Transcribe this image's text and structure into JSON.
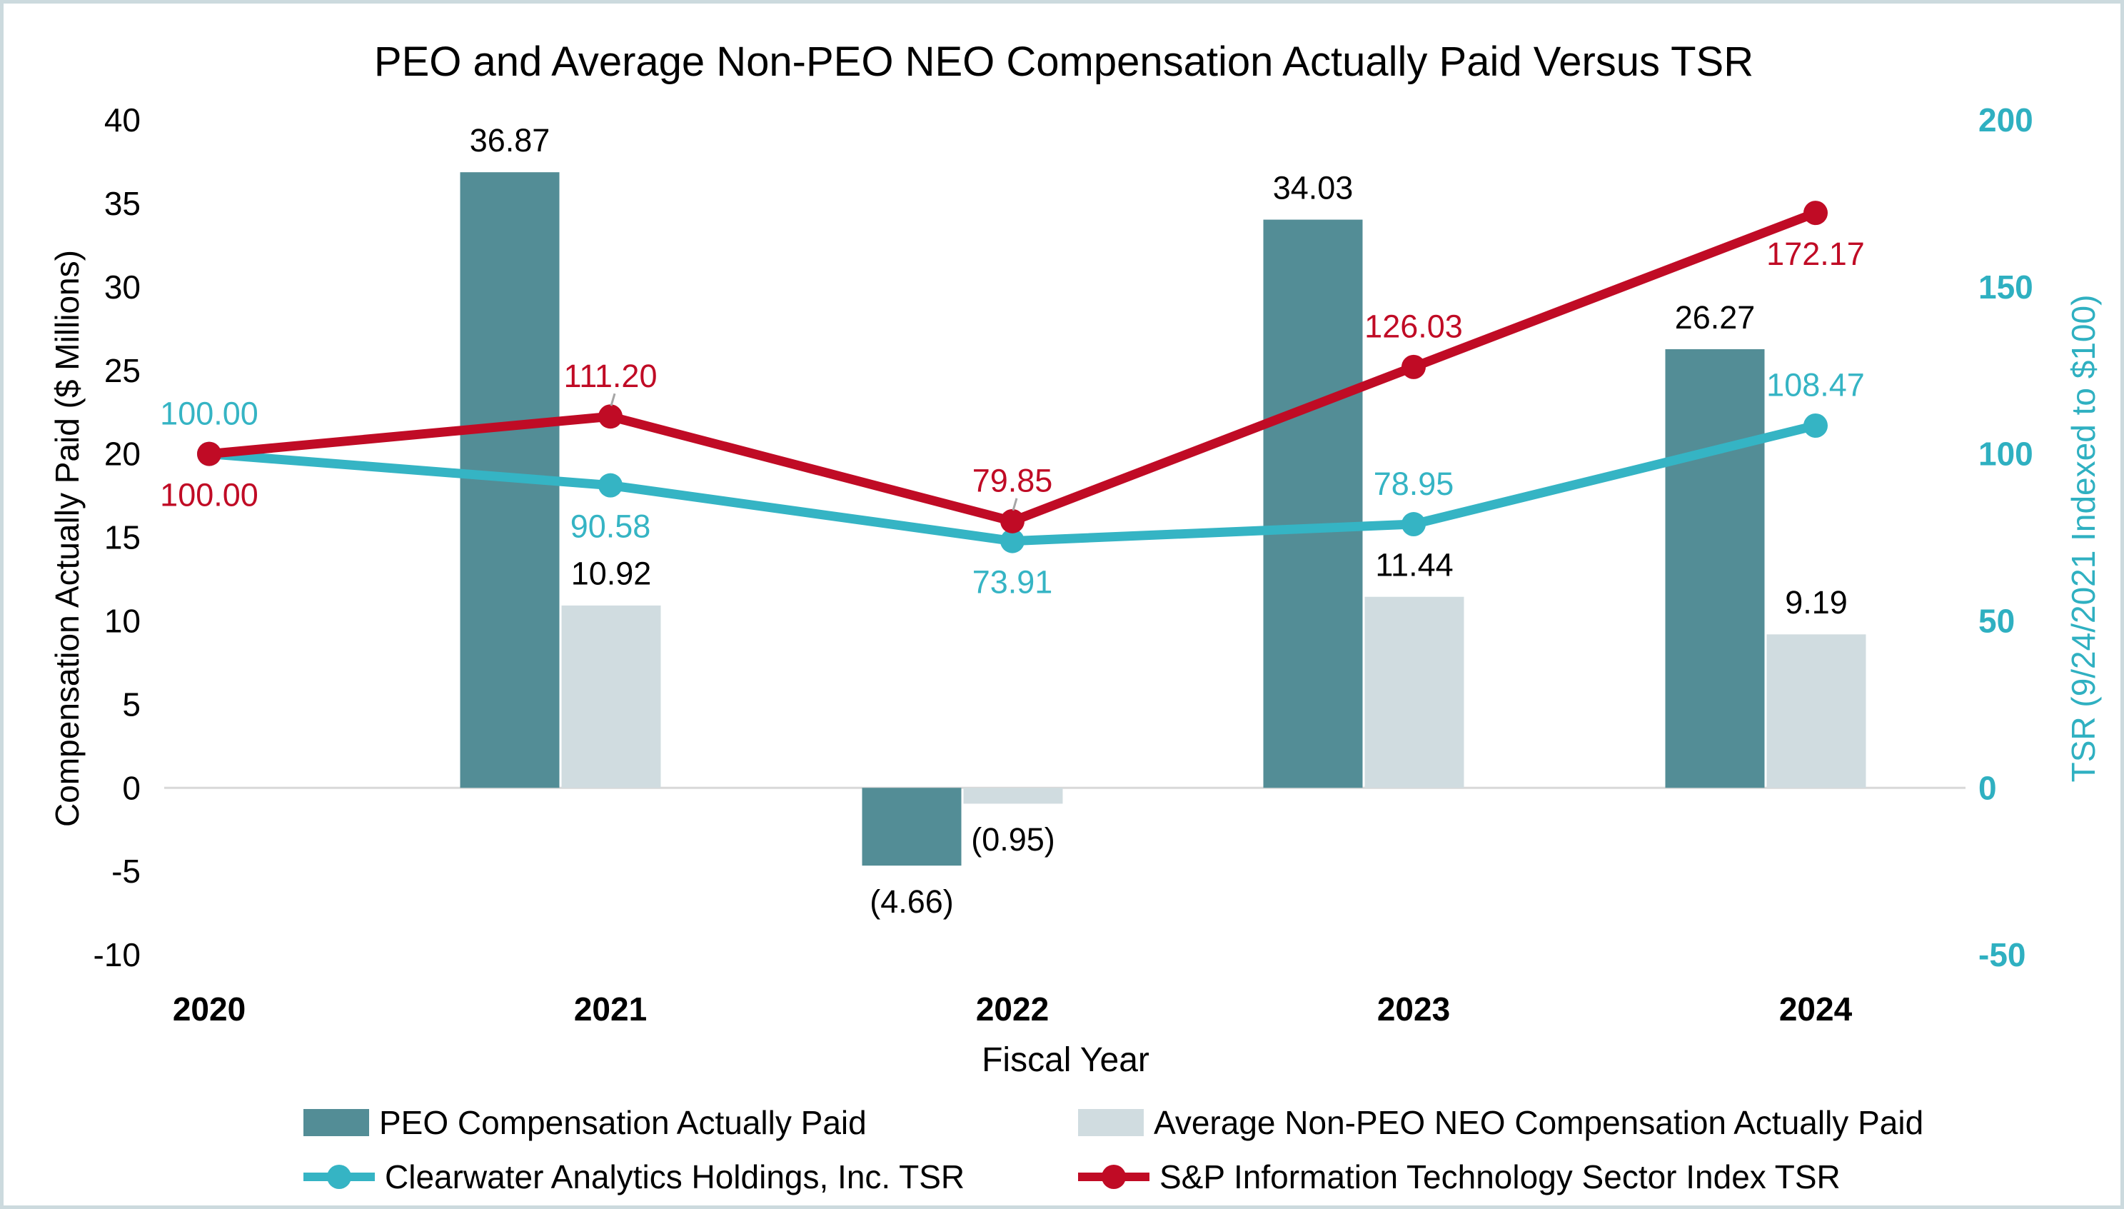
{
  "page": {
    "border_color": "#ccdade",
    "background": "#ffffff"
  },
  "chart_data": {
    "type": "combo-bar-line",
    "title": "PEO and Average Non-PEO NEO Compensation Actually Paid Versus TSR",
    "x_label": "Fiscal Year",
    "categories": [
      "2020",
      "2021",
      "2022",
      "2023",
      "2024"
    ],
    "y_left": {
      "label": "Compensation Actually Paid ($ Millions)",
      "min": -10,
      "max": 40,
      "step": 5,
      "ticks": [
        "40",
        "35",
        "30",
        "25",
        "20",
        "15",
        "10",
        "5",
        "0",
        "-5",
        "-10"
      ],
      "color": "#000000"
    },
    "y_right": {
      "label": "TSR (9/24/2021 Indexed to $100)",
      "min": -50,
      "max": 200,
      "step": 50,
      "ticks": [
        "200",
        "150",
        "100",
        "50",
        "0",
        "-50"
      ],
      "color": "#2fb0c1"
    },
    "grid": "zero-line-only",
    "zero_line_color": "#d8d8d8",
    "leader_line_color": "#a6a6a6",
    "legend_position": "bottom",
    "series": [
      {
        "name": "PEO Compensation Actually Paid",
        "type": "bar",
        "axis": "left",
        "color": "#538d96",
        "values": [
          null,
          36.87,
          -4.66,
          34.03,
          26.27
        ],
        "labels": [
          "",
          "36.87",
          "(4.66)",
          "34.03",
          "26.27"
        ]
      },
      {
        "name": "Average Non-PEO NEO Compensation Actually Paid",
        "type": "bar",
        "axis": "left",
        "color": "#d0dce0",
        "values": [
          null,
          10.92,
          -0.95,
          11.44,
          9.19
        ],
        "labels": [
          "",
          "10.92",
          "(0.95)",
          "11.44",
          "9.19"
        ]
      },
      {
        "name": "Clearwater Analytics Holdings, Inc. TSR",
        "type": "line",
        "axis": "right",
        "color": "#35b4c4",
        "values": [
          100.0,
          90.58,
          73.91,
          78.95,
          108.47
        ],
        "labels": [
          "100.00",
          "90.58",
          "73.91",
          "78.95",
          "108.47"
        ],
        "label_side": [
          "above",
          "below",
          "below",
          "above",
          "above"
        ],
        "leader_lines": [
          false,
          false,
          false,
          false,
          false
        ]
      },
      {
        "name": "S&P Information Technology Sector Index TSR",
        "type": "line",
        "axis": "right",
        "color": "#c00b25",
        "values": [
          100.0,
          111.2,
          79.85,
          126.03,
          172.17
        ],
        "labels": [
          "100.00",
          "111.20",
          "79.85",
          "126.03",
          "172.17"
        ],
        "label_side": [
          "below",
          "above",
          "above",
          "above",
          "below"
        ],
        "leader_lines": [
          false,
          true,
          true,
          false,
          false
        ]
      }
    ]
  }
}
